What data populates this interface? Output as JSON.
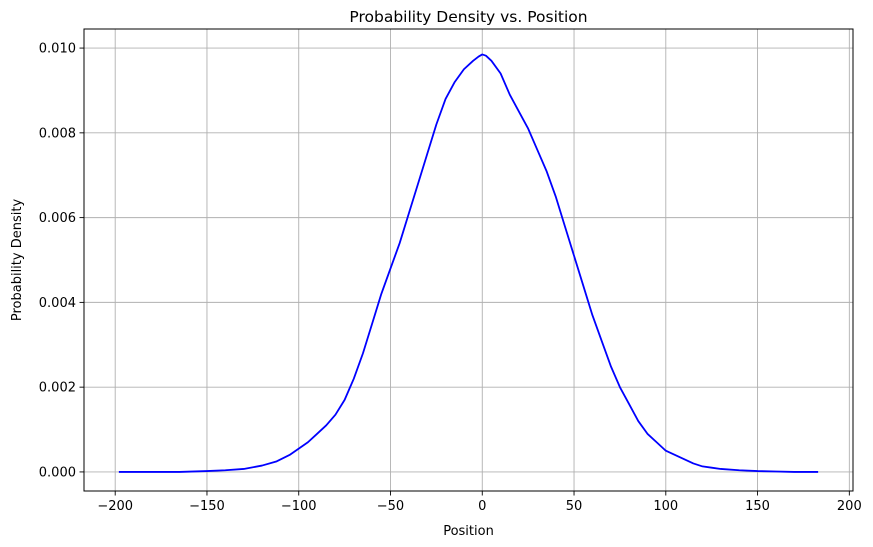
{
  "chart_data": {
    "type": "line",
    "title": "Probability Density vs. Position",
    "xlabel": "Position",
    "ylabel": "Probability Density",
    "xlim": [
      -217,
      202
    ],
    "ylim": [
      -0.00045,
      0.01045
    ],
    "grid": true,
    "legend": "none",
    "x_ticks": [
      -200,
      -150,
      -100,
      -50,
      0,
      50,
      100,
      150,
      200
    ],
    "x_tick_labels": [
      "−200",
      "−150",
      "−100",
      "−50",
      "0",
      "50",
      "100",
      "150",
      "200"
    ],
    "y_ticks": [
      0,
      0.002,
      0.004,
      0.006,
      0.008,
      0.01
    ],
    "y_tick_labels": [
      "0.000",
      "0.002",
      "0.004",
      "0.006",
      "0.008",
      "0.010"
    ],
    "colors": {
      "line": "#0000ff",
      "grid": "#b0b0b0",
      "axes": "#000000"
    },
    "series": [
      {
        "x": [
          -198,
          -180,
          -165,
          -150,
          -140,
          -130,
          -120,
          -112,
          -105,
          -100,
          -95,
          -90,
          -85,
          -80,
          -75,
          -70,
          -65,
          -60,
          -55,
          -50,
          -45,
          -40,
          -35,
          -30,
          -25,
          -20,
          -15,
          -10,
          -5,
          -2,
          0,
          2,
          5,
          10,
          15,
          20,
          25,
          30,
          35,
          40,
          45,
          50,
          55,
          60,
          65,
          70,
          75,
          80,
          85,
          90,
          95,
          100,
          105,
          110,
          115,
          120,
          125,
          130,
          140,
          150,
          160,
          170,
          183
        ],
        "y": [
          0.0,
          0.0,
          0.0,
          2e-05,
          4e-05,
          7e-05,
          0.00015,
          0.00025,
          0.0004,
          0.00055,
          0.0007,
          0.0009,
          0.0011,
          0.00135,
          0.0017,
          0.0022,
          0.0028,
          0.0035,
          0.0042,
          0.0048,
          0.0054,
          0.0061,
          0.0068,
          0.0075,
          0.0082,
          0.0088,
          0.0092,
          0.0095,
          0.0097,
          0.0098,
          0.00985,
          0.00982,
          0.0097,
          0.0094,
          0.0089,
          0.0085,
          0.0081,
          0.0076,
          0.0071,
          0.0065,
          0.0058,
          0.0051,
          0.0044,
          0.0037,
          0.0031,
          0.0025,
          0.002,
          0.0016,
          0.0012,
          0.0009,
          0.0007,
          0.0005,
          0.0004,
          0.0003,
          0.0002,
          0.00013,
          0.0001,
          7e-05,
          4e-05,
          2e-05,
          1e-05,
          0.0,
          0.0
        ]
      }
    ]
  }
}
